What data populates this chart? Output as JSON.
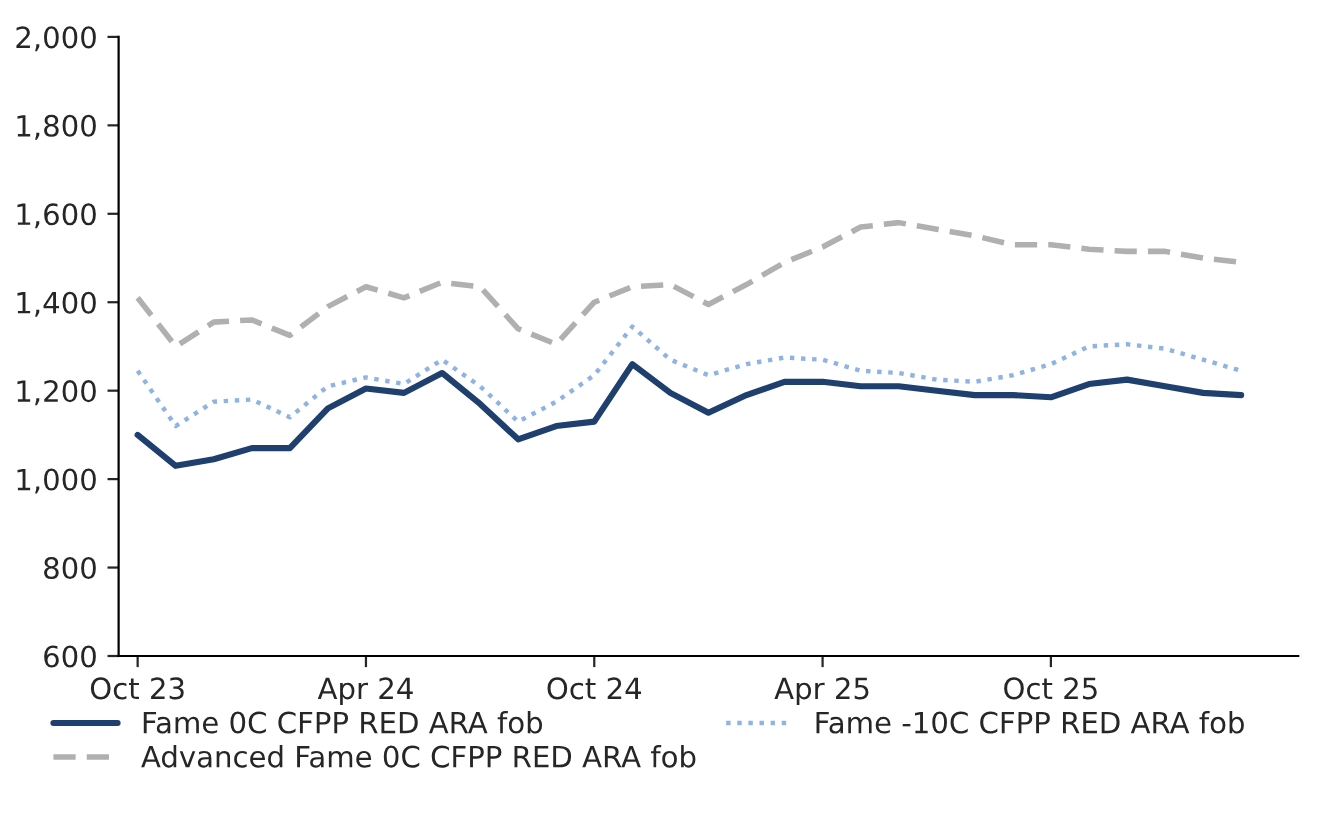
{
  "chart_data": {
    "type": "line",
    "categories": [
      "Oct 23",
      null,
      null,
      null,
      null,
      null,
      "Apr 24",
      null,
      null,
      null,
      null,
      null,
      "Oct 24",
      null,
      null,
      null,
      null,
      null,
      "Apr 25",
      null,
      null,
      null,
      null,
      null,
      "Oct 25",
      null,
      null,
      null,
      null,
      null
    ],
    "series": [
      {
        "name": "Fame 0C CFPP RED ARA fob",
        "color": "#1f3f6e",
        "line_style": "solid",
        "values": [
          1100,
          1030,
          1045,
          1070,
          1070,
          1160,
          1205,
          1195,
          1240,
          1170,
          1090,
          1120,
          1130,
          1260,
          1195,
          1150,
          1190,
          1220,
          1220,
          1210,
          1210,
          1200,
          1190,
          1190,
          1185,
          1215,
          1225,
          1210,
          1195,
          1190
        ]
      },
      {
        "name": "Fame -10C CFPP RED ARA fob",
        "color": "#8fb4e3",
        "line_style": "dotted",
        "values": [
          1245,
          1120,
          1175,
          1180,
          1140,
          1210,
          1230,
          1215,
          1270,
          1210,
          1130,
          1175,
          1235,
          1345,
          1270,
          1235,
          1260,
          1275,
          1270,
          1245,
          1240,
          1225,
          1220,
          1235,
          1260,
          1300,
          1305,
          1295,
          1270,
          1245
        ]
      },
      {
        "name": "Advanced Fame 0C CFPP RED ARA fob",
        "color": "#b0b0b0",
        "line_style": "dashed",
        "values": [
          1410,
          1300,
          1355,
          1360,
          1325,
          1390,
          1435,
          1410,
          1445,
          1435,
          1340,
          1305,
          1400,
          1435,
          1440,
          1395,
          1440,
          1490,
          1525,
          1570,
          1580,
          1565,
          1550,
          1530,
          1530,
          1520,
          1515,
          1515,
          1500,
          1490
        ]
      }
    ],
    "ylim": [
      600,
      2000
    ],
    "yticks": [
      {
        "value": 600,
        "label": "600"
      },
      {
        "value": 800,
        "label": "800"
      },
      {
        "value": 1000,
        "label": "1,000"
      },
      {
        "value": 1200,
        "label": "1,200"
      },
      {
        "value": 1400,
        "label": "1,400"
      },
      {
        "value": 1600,
        "label": "1,600"
      },
      {
        "value": 1800,
        "label": "1,800"
      },
      {
        "value": 2000,
        "label": "2,000"
      }
    ],
    "grid": false,
    "legend": "bottom",
    "marker": "none"
  }
}
